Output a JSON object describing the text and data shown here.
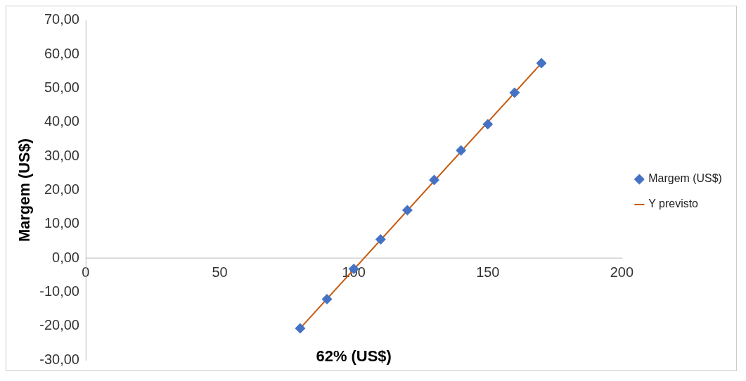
{
  "chart_data": {
    "type": "scatter",
    "xlabel": "62% (US$)",
    "ylabel": "Margem (US$)",
    "xlim": [
      0,
      200
    ],
    "xticks": [
      0,
      50,
      100,
      150,
      200
    ],
    "ylim": [
      -30,
      70
    ],
    "yticks": [
      {
        "value": -30,
        "label": "-30,00"
      },
      {
        "value": -20,
        "label": "-20,00"
      },
      {
        "value": -10,
        "label": "-10,00"
      },
      {
        "value": 0,
        "label": "0,00"
      },
      {
        "value": 10,
        "label": "10,00"
      },
      {
        "value": 20,
        "label": "20,00"
      },
      {
        "value": 30,
        "label": "30,00"
      },
      {
        "value": 40,
        "label": "40,00"
      },
      {
        "value": 50,
        "label": "50,00"
      },
      {
        "value": 60,
        "label": "60,00"
      },
      {
        "value": 70,
        "label": "70,00"
      }
    ],
    "grid": false,
    "legend": "right",
    "series": [
      {
        "name": "Margem (US$)",
        "marker": "diamond",
        "color": "#4472c4",
        "x": [
          80,
          90,
          100,
          110,
          120,
          130,
          140,
          150,
          160,
          170
        ],
        "values": [
          -20.7,
          -12.1,
          -3.2,
          5.5,
          14.1,
          23.0,
          31.7,
          39.4,
          48.7,
          57.4
        ]
      },
      {
        "name": "Y previsto",
        "type": "line",
        "color": "#c55a11",
        "x": [
          80,
          170
        ],
        "values": [
          -20.7,
          57.4
        ],
        "marker": "none",
        "line_style": "solid"
      }
    ]
  }
}
